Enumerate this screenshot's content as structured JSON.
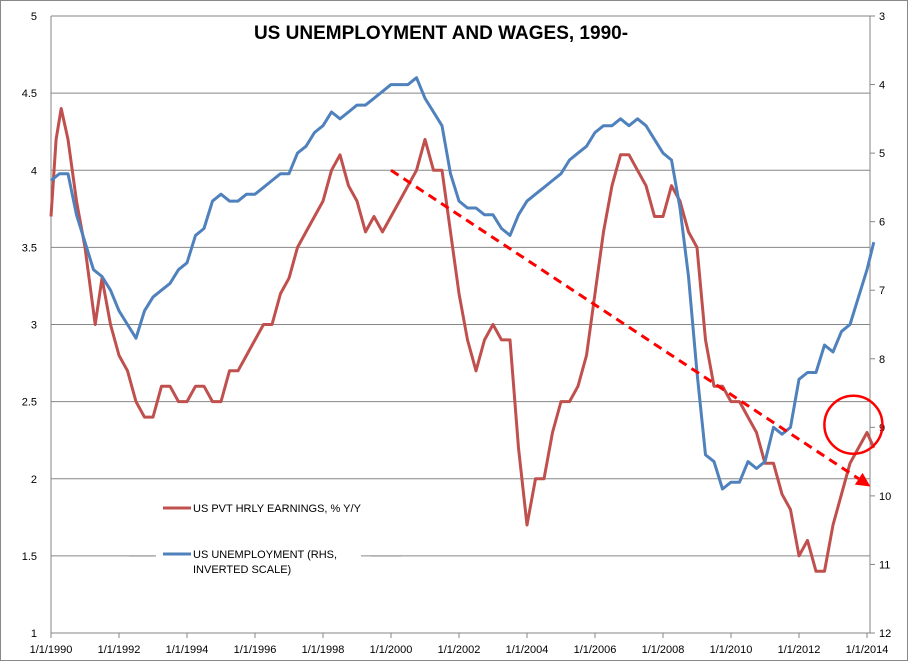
{
  "chart_data": {
    "type": "line",
    "title": "US UNEMPLOYMENT AND WAGES, 1990-",
    "xlabel": "",
    "ylabel": "",
    "x_ticks": [
      "1/1/1990",
      "1/1/1992",
      "1/1/1994",
      "1/1/1996",
      "1/1/1998",
      "1/1/2000",
      "1/1/2002",
      "1/1/2004",
      "1/1/2006",
      "1/1/2008",
      "1/1/2010",
      "1/1/2012",
      "1/1/2014"
    ],
    "xlim": [
      1990,
      2014.3
    ],
    "y_left": {
      "lim": [
        1,
        5
      ],
      "ticks": [
        "1",
        "1.5",
        "2",
        "2.5",
        "3",
        "3.5",
        "4",
        "4.5",
        "5"
      ]
    },
    "y_right": {
      "lim": [
        3,
        12
      ],
      "inverted": true,
      "ticks": [
        "3",
        "4",
        "5",
        "6",
        "7",
        "8",
        "9",
        "10",
        "11",
        "12"
      ]
    },
    "grid": true,
    "legend_position": "bottom-left",
    "series": [
      {
        "name": "US PVT HRLY EARNINGS, % Y/Y",
        "axis": "left",
        "color": "#c0504d",
        "x": [
          1990.0,
          1990.15,
          1990.3,
          1990.5,
          1990.75,
          1991.0,
          1991.3,
          1991.5,
          1991.75,
          1992.0,
          1992.25,
          1992.5,
          1992.75,
          1993.0,
          1993.25,
          1993.5,
          1993.75,
          1994.0,
          1994.25,
          1994.5,
          1994.75,
          1995.0,
          1995.25,
          1995.5,
          1995.75,
          1996.0,
          1996.25,
          1996.5,
          1996.75,
          1997.0,
          1997.25,
          1997.5,
          1997.75,
          1998.0,
          1998.25,
          1998.5,
          1998.75,
          1999.0,
          1999.25,
          1999.5,
          1999.75,
          2000.0,
          2000.25,
          2000.5,
          2000.75,
          2001.0,
          2001.25,
          2001.5,
          2001.75,
          2002.0,
          2002.25,
          2002.5,
          2002.75,
          2003.0,
          2003.25,
          2003.5,
          2003.75,
          2004.0,
          2004.25,
          2004.5,
          2004.75,
          2005.0,
          2005.25,
          2005.5,
          2005.75,
          2006.0,
          2006.25,
          2006.5,
          2006.75,
          2007.0,
          2007.25,
          2007.5,
          2007.75,
          2008.0,
          2008.25,
          2008.5,
          2008.75,
          2009.0,
          2009.25,
          2009.5,
          2009.75,
          2010.0,
          2010.25,
          2010.5,
          2010.75,
          2011.0,
          2011.25,
          2011.5,
          2011.75,
          2012.0,
          2012.25,
          2012.5,
          2012.75,
          2013.0,
          2013.25,
          2013.5,
          2013.75,
          2014.0,
          2014.2
        ],
        "values": [
          3.7,
          4.2,
          4.4,
          4.2,
          3.8,
          3.5,
          3.0,
          3.3,
          3.0,
          2.8,
          2.7,
          2.5,
          2.4,
          2.4,
          2.6,
          2.6,
          2.5,
          2.5,
          2.6,
          2.6,
          2.5,
          2.5,
          2.7,
          2.7,
          2.8,
          2.9,
          3.0,
          3.0,
          3.2,
          3.3,
          3.5,
          3.6,
          3.7,
          3.8,
          4.0,
          4.1,
          3.9,
          3.8,
          3.6,
          3.7,
          3.6,
          3.7,
          3.8,
          3.9,
          4.0,
          4.2,
          4.0,
          4.0,
          3.6,
          3.2,
          2.9,
          2.7,
          2.9,
          3.0,
          2.9,
          2.9,
          2.2,
          1.7,
          2.0,
          2.0,
          2.3,
          2.5,
          2.5,
          2.6,
          2.8,
          3.2,
          3.6,
          3.9,
          4.1,
          4.1,
          4.0,
          3.9,
          3.7,
          3.7,
          3.9,
          3.8,
          3.6,
          3.5,
          2.9,
          2.6,
          2.6,
          2.5,
          2.5,
          2.4,
          2.3,
          2.1,
          2.1,
          1.9,
          1.8,
          1.5,
          1.6,
          1.4,
          1.4,
          1.7,
          1.9,
          2.1,
          2.2,
          2.3,
          2.2
        ]
      },
      {
        "name": "US UNEMPLOYMENT  (RHS, INVERTED SCALE)",
        "axis": "right",
        "color": "#4f81bd",
        "x": [
          1990.0,
          1990.25,
          1990.5,
          1990.75,
          1991.0,
          1991.25,
          1991.5,
          1991.75,
          1992.0,
          1992.25,
          1992.5,
          1992.75,
          1993.0,
          1993.25,
          1993.5,
          1993.75,
          1994.0,
          1994.25,
          1994.5,
          1994.75,
          1995.0,
          1995.25,
          1995.5,
          1995.75,
          1996.0,
          1996.25,
          1996.5,
          1996.75,
          1997.0,
          1997.25,
          1997.5,
          1997.75,
          1998.0,
          1998.25,
          1998.5,
          1998.75,
          1999.0,
          1999.25,
          1999.5,
          1999.75,
          2000.0,
          2000.25,
          2000.5,
          2000.75,
          2001.0,
          2001.25,
          2001.5,
          2001.75,
          2002.0,
          2002.25,
          2002.5,
          2002.75,
          2003.0,
          2003.25,
          2003.5,
          2003.75,
          2004.0,
          2004.25,
          2004.5,
          2004.75,
          2005.0,
          2005.25,
          2005.5,
          2005.75,
          2006.0,
          2006.25,
          2006.5,
          2006.75,
          2007.0,
          2007.25,
          2007.5,
          2007.75,
          2008.0,
          2008.25,
          2008.5,
          2008.75,
          2009.0,
          2009.25,
          2009.5,
          2009.75,
          2010.0,
          2010.25,
          2010.5,
          2010.75,
          2011.0,
          2011.25,
          2011.5,
          2011.75,
          2012.0,
          2012.25,
          2012.5,
          2012.75,
          2013.0,
          2013.25,
          2013.5,
          2013.75,
          2014.0,
          2014.2
        ],
        "values": [
          5.4,
          5.3,
          5.3,
          5.9,
          6.3,
          6.7,
          6.8,
          7.0,
          7.3,
          7.5,
          7.7,
          7.3,
          7.1,
          7.0,
          6.9,
          6.7,
          6.6,
          6.2,
          6.1,
          5.7,
          5.6,
          5.7,
          5.7,
          5.6,
          5.6,
          5.5,
          5.4,
          5.3,
          5.3,
          5.0,
          4.9,
          4.7,
          4.6,
          4.4,
          4.5,
          4.4,
          4.3,
          4.3,
          4.2,
          4.1,
          4.0,
          4.0,
          4.0,
          3.9,
          4.2,
          4.4,
          4.6,
          5.3,
          5.7,
          5.8,
          5.8,
          5.9,
          5.9,
          6.1,
          6.2,
          5.9,
          5.7,
          5.6,
          5.5,
          5.4,
          5.3,
          5.1,
          5.0,
          4.9,
          4.7,
          4.6,
          4.6,
          4.5,
          4.6,
          4.5,
          4.6,
          4.8,
          5.0,
          5.1,
          5.8,
          6.8,
          8.2,
          9.4,
          9.5,
          9.9,
          9.8,
          9.8,
          9.5,
          9.6,
          9.5,
          9.0,
          9.1,
          9.0,
          8.3,
          8.2,
          8.2,
          7.8,
          7.9,
          7.6,
          7.5,
          7.1,
          6.7,
          6.3
        ]
      }
    ],
    "annotations": [
      {
        "type": "dashed-arrow",
        "color": "#ff0000",
        "from": [
          2000.0,
          4.0
        ],
        "to": [
          2014.1,
          1.95
        ],
        "axis": "left"
      },
      {
        "type": "circle",
        "color": "#ff0000",
        "center": [
          2013.6,
          2.35
        ],
        "axis": "left"
      }
    ]
  }
}
